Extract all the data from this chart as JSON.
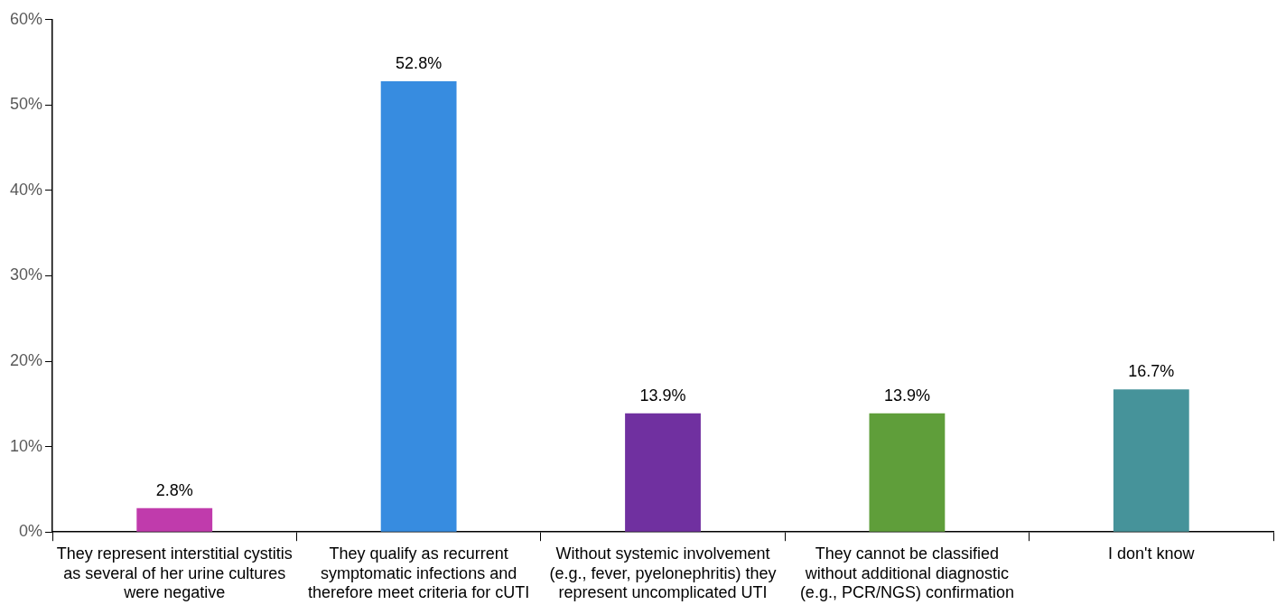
{
  "chart_data": {
    "type": "bar",
    "categories": [
      "They represent interstitial cystitis as several of her urine cultures were negative",
      "They qualify as recurrent symptomatic infections and therefore meet criteria for cUTI",
      "Without systemic involvement (e.g., fever, pyelonephritis) they represent uncomplicated UTI",
      "They cannot be classified without additional diagnostic (e.g., PCR/NGS) confirmation",
      "I don't know"
    ],
    "values": [
      2.8,
      52.8,
      13.9,
      13.9,
      16.7
    ],
    "colors": [
      "#c03bac",
      "#378ce0",
      "#7030a0",
      "#5f9e3a",
      "#46939a"
    ],
    "value_labels": [
      "2.8%",
      "52.8%",
      "13.9%",
      "13.9%",
      "16.7%"
    ],
    "ylim": [
      0,
      60
    ],
    "yticks": [
      {
        "value": 0,
        "label": "0%"
      },
      {
        "value": 10,
        "label": "10%"
      },
      {
        "value": 20,
        "label": "20%"
      },
      {
        "value": 30,
        "label": "30%"
      },
      {
        "value": 40,
        "label": "40%"
      },
      {
        "value": 50,
        "label": "50%"
      },
      {
        "value": 60,
        "label": "60%"
      }
    ],
    "grid": false,
    "legend": false
  }
}
